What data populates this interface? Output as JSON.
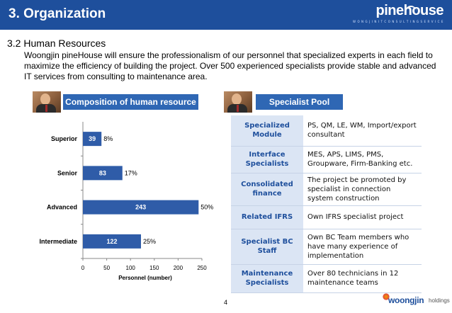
{
  "header": {
    "title": "3. Organization",
    "logo_text": "pinehouse",
    "logo_tagline": "W O N G J I N   I T   C O N S U L T I N G   S E R V I C E"
  },
  "section": {
    "title": "3.2 Human Resources",
    "intro": "Woongjin pineHouse will ensure the professionalism of our personnel that specialized experts in each field to maximize the efficiency of building the project. Over 500 experienced specialists provide stable and advanced IT services from consulting to maintenance area."
  },
  "left_panel": {
    "banner": "Composition of human resource"
  },
  "right_panel": {
    "banner": "Specialist Pool",
    "rows": [
      {
        "key": "Specialized Module",
        "value": "PS, QM, LE, WM, Import/export consultant"
      },
      {
        "key": "Interface Specialists",
        "value": "MES, APS, LIMS, PMS, Groupware, Firm-Banking etc."
      },
      {
        "key": "Consolidated finance",
        "value": "The project be promoted by specialist in connection system construction"
      },
      {
        "key": "Related IFRS",
        "value": "Own IFRS specialist project"
      },
      {
        "key": "Specialist BC Staff",
        "value": "Own BC Team members who have many experience of implementation"
      },
      {
        "key": "Maintenance Specialists",
        "value": "Over 80 technicians in 12 maintenance teams"
      }
    ]
  },
  "chart_data": {
    "type": "bar",
    "orientation": "horizontal",
    "categories": [
      "Superior",
      "Senior",
      "Advanced",
      "Intermediate"
    ],
    "values": [
      39,
      83,
      243,
      122
    ],
    "percent_labels": [
      "8%",
      "17%",
      "50%",
      "25%"
    ],
    "xlabel": "Personnel (number)",
    "ylabel": "",
    "xlim": [
      0,
      250
    ],
    "xticks": [
      0,
      50,
      100,
      150,
      200,
      250
    ],
    "bar_color": "#2f5ca8",
    "grid": false
  },
  "footer": {
    "page_number": "4",
    "brand": "woongjin",
    "brand_sub": "holdings"
  }
}
